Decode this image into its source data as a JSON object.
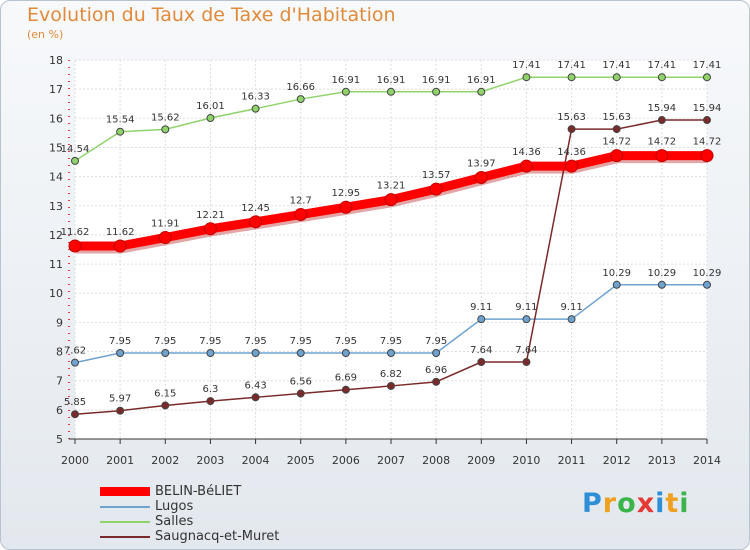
{
  "header": {
    "title": "Evolution du Taux de Taxe d'Habitation",
    "subtitle": "(en %)"
  },
  "chart_data": {
    "type": "line",
    "title": "Evolution du Taux de Taxe d'Habitation",
    "ylabel": "(en %)",
    "xlabel": "",
    "x": [
      "2000",
      "2001",
      "2002",
      "2003",
      "2004",
      "2005",
      "2006",
      "2007",
      "2008",
      "2009",
      "2010",
      "2011",
      "2012",
      "2013",
      "2014"
    ],
    "ylim": [
      5,
      18
    ],
    "yticks": [
      5,
      6,
      7,
      8,
      9,
      10,
      11,
      12,
      13,
      14,
      15,
      16,
      17,
      18
    ],
    "grid": true,
    "legend_position": "bottom-left",
    "series": [
      {
        "name": "BELIN-BéLIET",
        "color": "#ff0000",
        "emphasis": true,
        "values": [
          11.62,
          11.62,
          11.91,
          12.21,
          12.45,
          12.7,
          12.95,
          13.21,
          13.57,
          13.97,
          14.36,
          14.36,
          14.72,
          14.72,
          14.72
        ],
        "labels": [
          "11.62",
          "11.62",
          "11.91",
          "12.21",
          "12.45",
          "12.7",
          "12.95",
          "13.21",
          "13.57",
          "13.97",
          "14.36",
          "14.36",
          "14.72",
          "14.72",
          "14.72"
        ]
      },
      {
        "name": "Lugos",
        "color": "#6fa3cf",
        "emphasis": false,
        "values": [
          7.62,
          7.95,
          7.95,
          7.95,
          7.95,
          7.95,
          7.95,
          7.95,
          7.95,
          9.11,
          9.11,
          9.11,
          10.29,
          10.29,
          10.29
        ],
        "labels": [
          "7.62",
          "7.95",
          "7.95",
          "7.95",
          "7.95",
          "7.95",
          "7.95",
          "7.95",
          "7.95",
          "9.11",
          "9.11",
          "9.11",
          "10.29",
          "10.29",
          "10.29"
        ]
      },
      {
        "name": "Salles",
        "color": "#8fd36a",
        "emphasis": false,
        "values": [
          14.54,
          15.54,
          15.62,
          16.01,
          16.33,
          16.66,
          16.91,
          16.91,
          16.91,
          16.91,
          17.41,
          17.41,
          17.41,
          17.41,
          17.41
        ],
        "labels": [
          "14.54",
          "15.54",
          "15.62",
          "16.01",
          "16.33",
          "16.66",
          "16.91",
          "16.91",
          "16.91",
          "16.91",
          "17.41",
          "17.41",
          "17.41",
          "17.41",
          "17.41"
        ]
      },
      {
        "name": "Saugnacq-et-Muret",
        "color": "#7a2a2a",
        "emphasis": false,
        "values": [
          5.85,
          5.97,
          6.15,
          6.3,
          6.43,
          6.56,
          6.69,
          6.82,
          6.96,
          7.64,
          7.64,
          15.63,
          15.63,
          15.94,
          15.94
        ],
        "labels": [
          "5.85",
          "5.97",
          "6.15",
          "6.3",
          "6.43",
          "6.56",
          "6.69",
          "6.82",
          "6.96",
          "7.64",
          "7.64",
          "15.63",
          "15.63",
          "15.94",
          "15.94"
        ]
      }
    ]
  },
  "logo": {
    "text": "Proxiti",
    "letters": [
      {
        "char": "P",
        "color": "#2e8fd6"
      },
      {
        "char": "r",
        "color": "#f0a020"
      },
      {
        "char": "o",
        "color": "#3bb54a"
      },
      {
        "char": "x",
        "color": "#e53935"
      },
      {
        "char": "i",
        "color": "#2e8fd6"
      },
      {
        "char": "t",
        "color": "#f0a020"
      },
      {
        "char": "i",
        "color": "#3bb54a"
      }
    ]
  }
}
